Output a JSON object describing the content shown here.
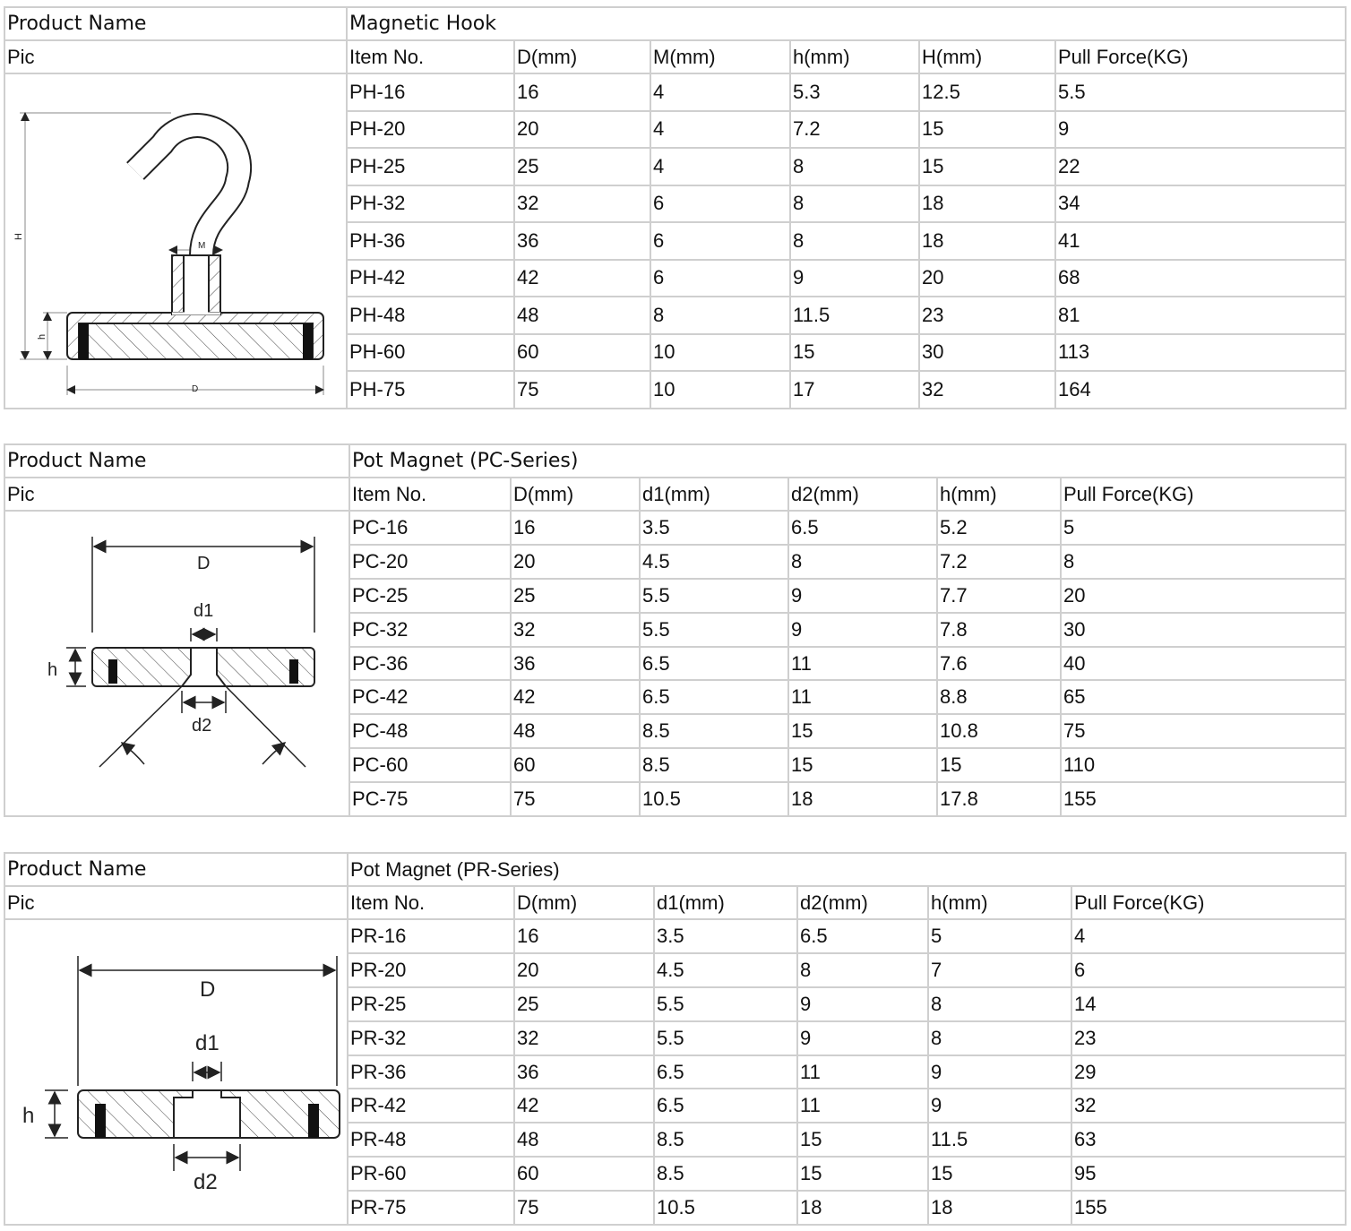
{
  "tables": [
    {
      "product_name_label": "Product Name",
      "product_name": "Magnetic Hook",
      "pic_label": "Pic",
      "drawing_labels": {
        "H": "H",
        "M": "M",
        "h": "h",
        "D": "D"
      },
      "columns": [
        "Item No.",
        "D(mm)",
        "M(mm)",
        "h(mm)",
        "H(mm)",
        "Pull Force(KG)"
      ],
      "rows": [
        [
          "PH-16",
          "16",
          "4",
          "5.3",
          "12.5",
          "5.5"
        ],
        [
          "PH-20",
          "20",
          "4",
          "7.2",
          "15",
          "9"
        ],
        [
          "PH-25",
          "25",
          "4",
          "8",
          "15",
          "22"
        ],
        [
          "PH-32",
          "32",
          "6",
          "8",
          "18",
          "34"
        ],
        [
          "PH-36",
          "36",
          "6",
          "8",
          "18",
          "41"
        ],
        [
          "PH-42",
          "42",
          "6",
          "9",
          "20",
          "68"
        ],
        [
          "PH-48",
          "48",
          "8",
          "11.5",
          "23",
          "81"
        ],
        [
          "PH-60",
          "60",
          "10",
          "15",
          "30",
          "113"
        ],
        [
          "PH-75",
          "75",
          "10",
          "17",
          "32",
          "164"
        ]
      ]
    },
    {
      "product_name_label": "Product Name",
      "product_name": "Pot Magnet (PC-Series)",
      "pic_label": "Pic",
      "drawing_labels": {
        "D": "D",
        "d1": "d1",
        "h": "h",
        "d2": "d2"
      },
      "columns": [
        "Item No.",
        "D(mm)",
        "d1(mm)",
        "d2(mm)",
        "h(mm)",
        "Pull Force(KG)"
      ],
      "rows": [
        [
          "PC-16",
          "16",
          "3.5",
          "6.5",
          "5.2",
          "5"
        ],
        [
          "PC-20",
          "20",
          "4.5",
          "8",
          "7.2",
          "8"
        ],
        [
          "PC-25",
          "25",
          "5.5",
          "9",
          "7.7",
          "20"
        ],
        [
          "PC-32",
          "32",
          "5.5",
          "9",
          "7.8",
          "30"
        ],
        [
          "PC-36",
          "36",
          "6.5",
          "11",
          "7.6",
          "40"
        ],
        [
          "PC-42",
          "42",
          "6.5",
          "11",
          "8.8",
          "65"
        ],
        [
          "PC-48",
          "48",
          "8.5",
          "15",
          "10.8",
          "75"
        ],
        [
          "PC-60",
          "60",
          "8.5",
          "15",
          "15",
          "110"
        ],
        [
          "PC-75",
          "75",
          "10.5",
          "18",
          "17.8",
          "155"
        ]
      ]
    },
    {
      "product_name_label": "Product Name",
      "product_name": "Pot Magnet (PR-Series)",
      "pic_label": "Pic",
      "drawing_labels": {
        "D": "D",
        "d1": "d1",
        "h": "h",
        "d2": "d2"
      },
      "columns": [
        "Item No.",
        "D(mm)",
        "d1(mm)",
        "d2(mm)",
        "h(mm)",
        "Pull Force(KG)"
      ],
      "rows": [
        [
          "PR-16",
          "16",
          "3.5",
          "6.5",
          "5",
          "4"
        ],
        [
          "PR-20",
          "20",
          "4.5",
          "8",
          "7",
          "6"
        ],
        [
          "PR-25",
          "25",
          "5.5",
          "9",
          "8",
          "14"
        ],
        [
          "PR-32",
          "32",
          "5.5",
          "9",
          "8",
          "23"
        ],
        [
          "PR-36",
          "36",
          "6.5",
          "11",
          "9",
          "29"
        ],
        [
          "PR-42",
          "42",
          "6.5",
          "11",
          "9",
          "32"
        ],
        [
          "PR-48",
          "48",
          "8.5",
          "15",
          "11.5",
          "63"
        ],
        [
          "PR-60",
          "60",
          "8.5",
          "15",
          "15",
          "95"
        ],
        [
          "PR-75",
          "75",
          "10.5",
          "18",
          "18",
          "155"
        ]
      ]
    }
  ]
}
